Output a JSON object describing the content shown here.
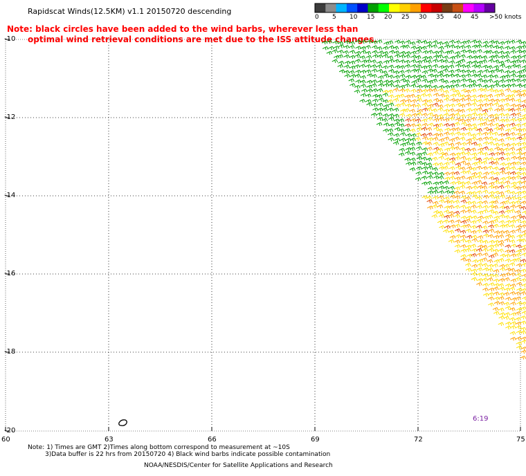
{
  "title": "Rapidscat Winds(12.5KM) v1.1 20150720 descending",
  "note_line1": "Note: black circles have been added to the wind barbs, wherever less than",
  "note_line2": "optimal wind retrieval conditions are met due to the ISS attitude changes.",
  "legend": {
    "labels": [
      "0",
      "5",
      "10",
      "15",
      "20",
      "25",
      "30",
      "35",
      "40",
      "45",
      ">50 knots"
    ],
    "colors": [
      "#3c3c3c",
      "#8c8c8c",
      "#00b4ff",
      "#0050ff",
      "#0000c8",
      "#00a000",
      "#00ff00",
      "#ffff00",
      "#ffd000",
      "#ffa000",
      "#ff0000",
      "#c80000",
      "#783c14",
      "#c85014",
      "#ff00ff",
      "#b400ff",
      "#6400a0"
    ]
  },
  "axes": {
    "y_labels": [
      "-10",
      "-12",
      "-14",
      "-16",
      "-18",
      "-20"
    ],
    "x_labels": [
      "60",
      "63",
      "66",
      "69",
      "72",
      "75"
    ],
    "lat_range": [
      -20,
      -10
    ],
    "lon_range": [
      60,
      75
    ]
  },
  "time_label": "6:19",
  "footer": {
    "line1": "Note: 1) Times are GMT 2)Times along bottom correspond to measurement at ~10S",
    "line2": "3)Data buffer is 22 hrs from 20150720 4) Black wind barbs indicate possible contamination",
    "line3": "NOAA/NESDIS/Center for Satellite Applications and Research"
  },
  "wind_colors": {
    "green": "#00a000",
    "yellow": "#ffe000",
    "orange": "#ffa000",
    "red": "#e04000"
  }
}
